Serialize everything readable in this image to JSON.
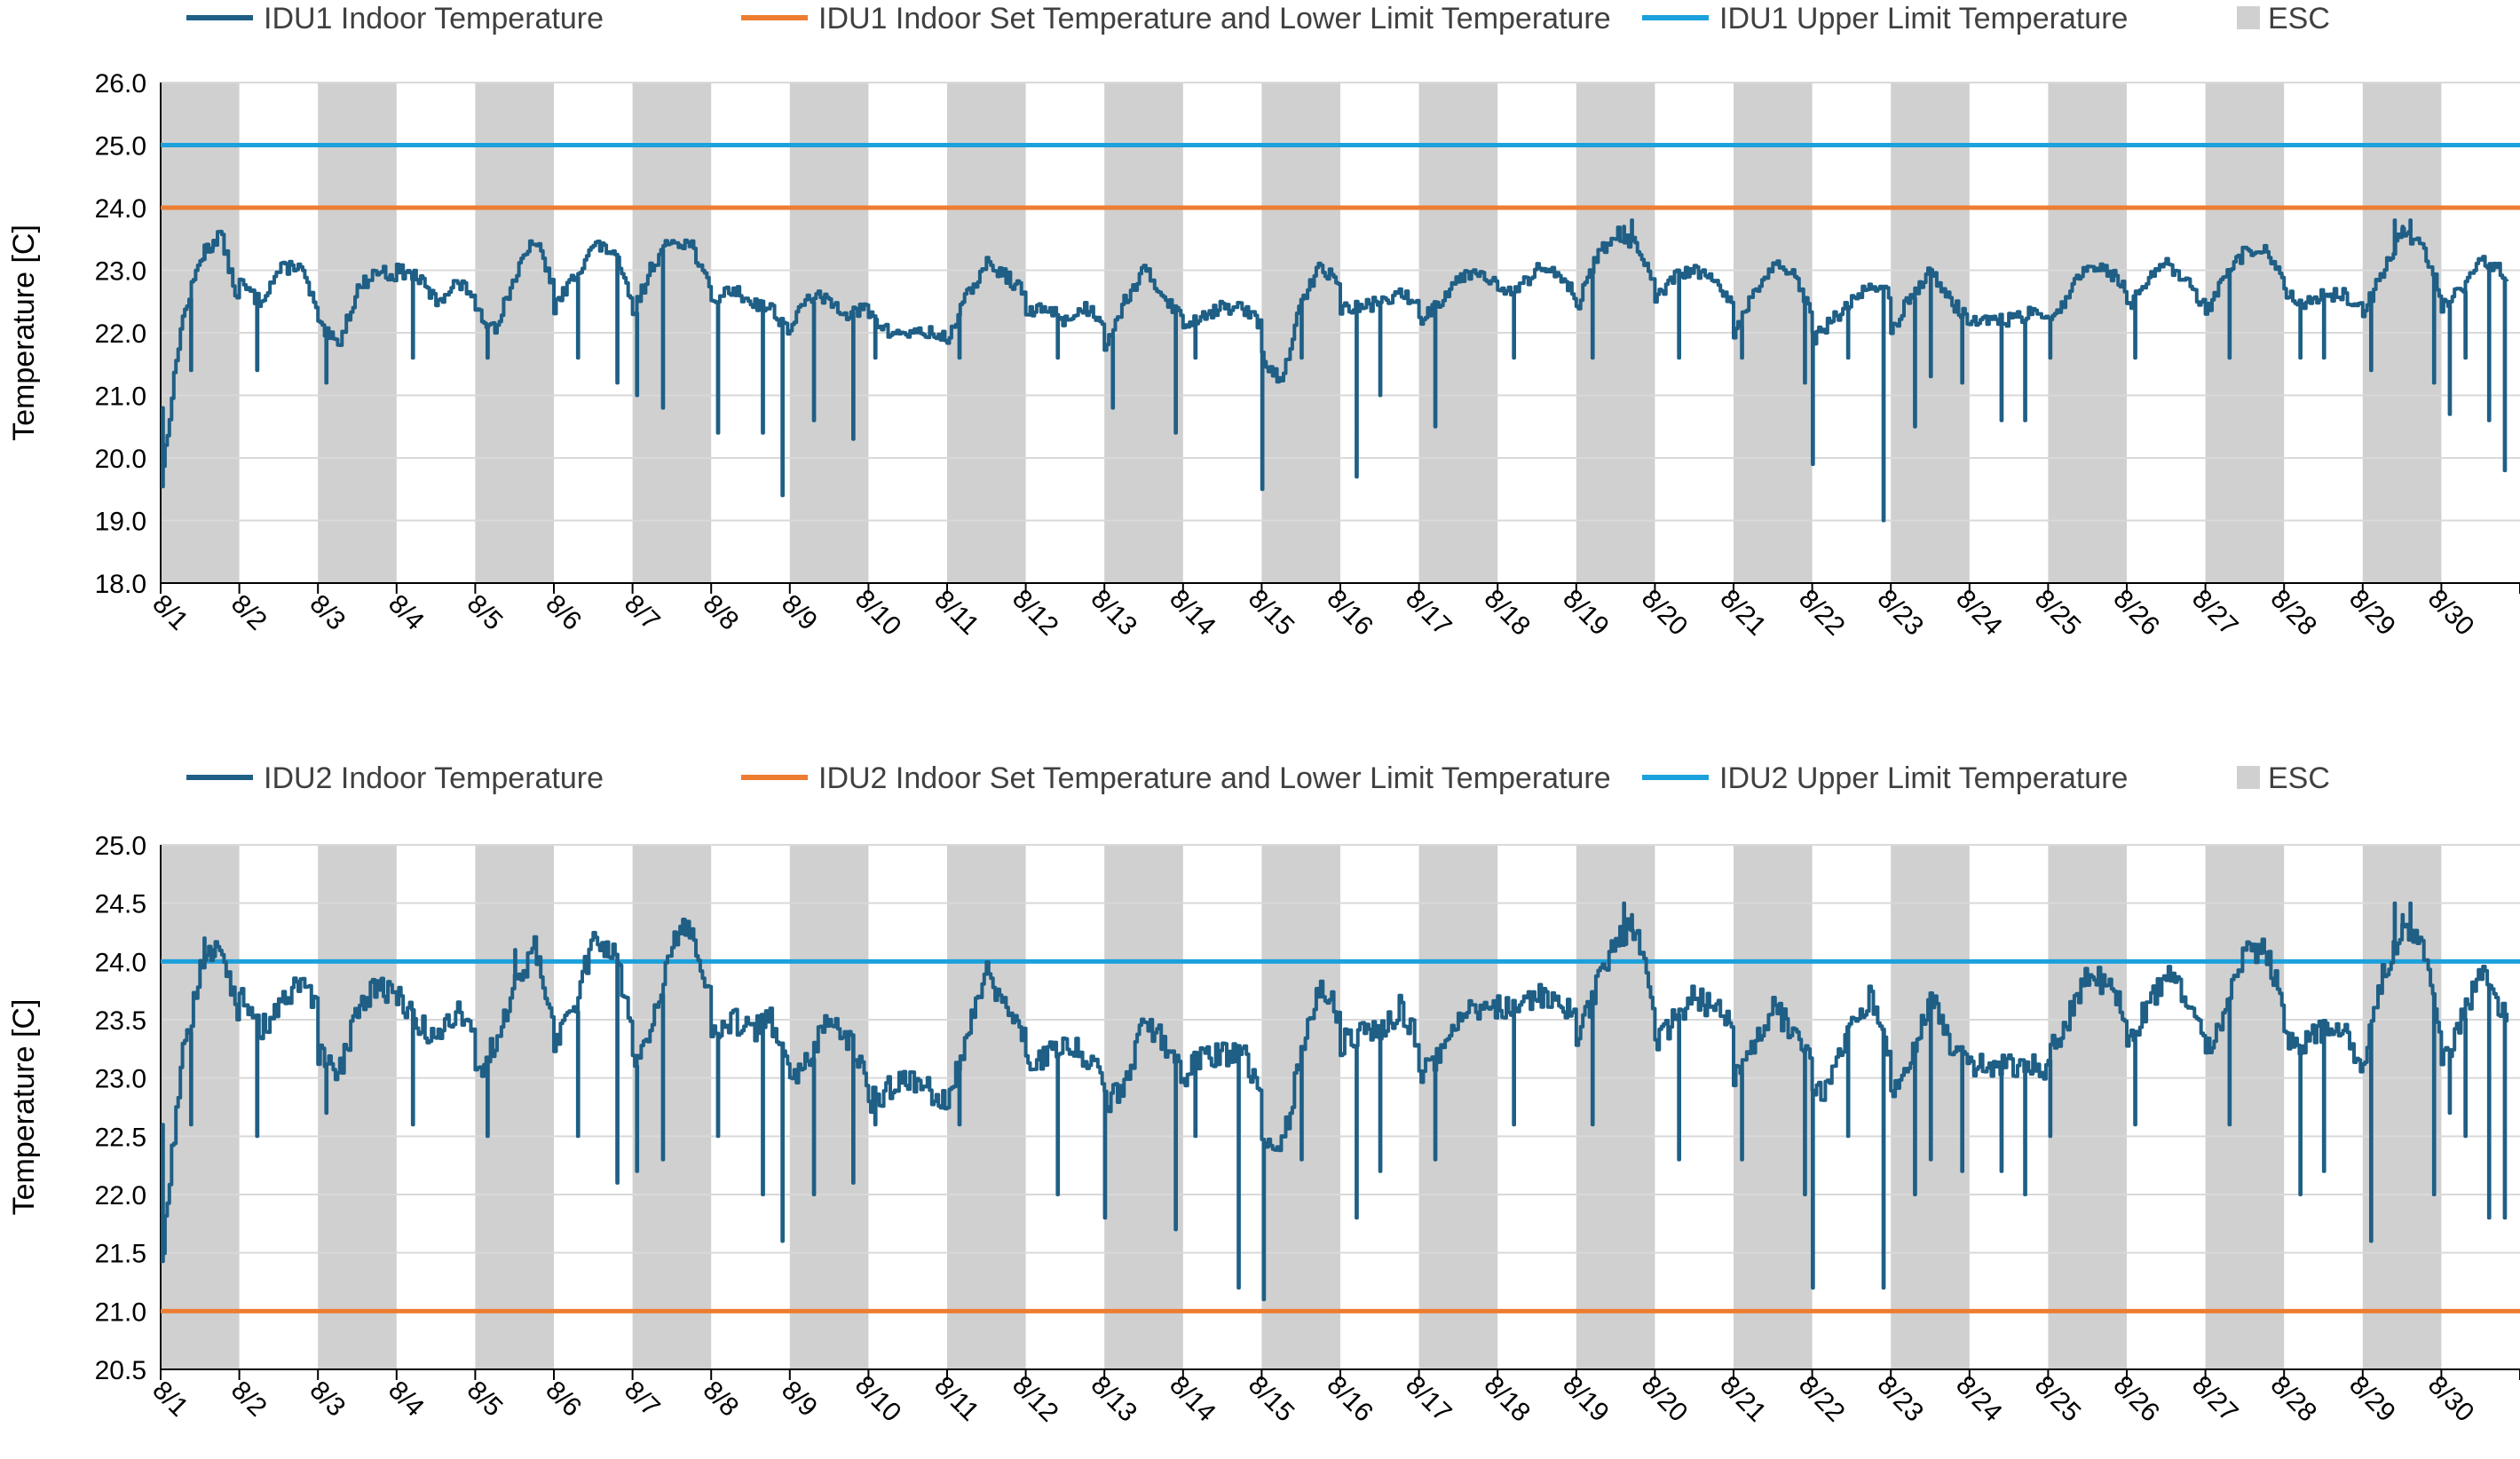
{
  "chart_data": [
    {
      "type": "line",
      "ylabel": "Temperature [C]",
      "ylim": [
        18.0,
        26.0
      ],
      "ytick_labels": [
        "18.0",
        "19.0",
        "20.0",
        "21.0",
        "22.0",
        "23.0",
        "24.0",
        "25.0",
        "26.0"
      ],
      "xtick_labels": [
        "8/1",
        "8/2",
        "8/3",
        "8/4",
        "8/5",
        "8/6",
        "8/7",
        "8/8",
        "8/9",
        "8/10",
        "8/11",
        "8/12",
        "8/13",
        "8/14",
        "8/15",
        "8/16",
        "8/17",
        "8/18",
        "8/19",
        "8/20",
        "8/21",
        "8/22",
        "8/23",
        "8/24",
        "8/25",
        "8/26",
        "8/27",
        "8/28",
        "8/29",
        "8/30"
      ],
      "esc_days": [
        1,
        3,
        5,
        7,
        9,
        11,
        13,
        15,
        17,
        19,
        21,
        23,
        25,
        27,
        29
      ],
      "legend": [
        {
          "label": "IDU1 Indoor Temperature",
          "color": "#1f5f86",
          "kind": "line"
        },
        {
          "label": "IDU1 Indoor Set Temperature and Lower Limit Temperature",
          "color": "#ed7d31",
          "kind": "line"
        },
        {
          "label": "IDU1 Upper Limit Temperature",
          "color": "#1ba1dc",
          "kind": "line"
        },
        {
          "label": "ESC",
          "color": "#d0d0d0",
          "kind": "box"
        }
      ],
      "setpoint": 24.0,
      "upper_limit": 25.0,
      "series": [
        {
          "name": "IDU1 Indoor Temperature",
          "day_profile": [
            [
              19.6,
              22.1,
              23.2,
              23.6,
              22.4
            ],
            [
              22.8,
              22.5,
              23.0,
              23.1,
              22.3
            ],
            [
              22.1,
              21.8,
              22.7,
              23.0,
              22.9
            ],
            [
              23.0,
              22.9,
              22.5,
              22.8,
              22.6
            ],
            [
              22.3,
              22.1,
              22.9,
              23.5,
              22.7
            ],
            [
              22.4,
              22.9,
              23.4,
              23.3,
              22.4
            ],
            [
              22.3,
              23.1,
              23.5,
              23.4,
              22.6
            ],
            [
              22.5,
              22.7,
              22.5,
              22.4,
              22.0
            ],
            [
              22.1,
              22.6,
              22.5,
              22.3,
              22.4
            ],
            [
              22.3,
              22.0,
              22.0,
              22.0,
              21.9
            ],
            [
              21.9,
              22.6,
              23.1,
              22.9,
              22.6
            ],
            [
              22.3,
              22.4,
              22.2,
              22.4,
              22.2
            ],
            [
              21.8,
              22.5,
              23.0,
              22.6,
              22.2
            ],
            [
              22.1,
              22.3,
              22.4,
              22.4,
              22.1
            ],
            [
              21.6,
              21.2,
              22.5,
              23.1,
              22.7
            ],
            [
              22.4,
              22.4,
              22.5,
              22.6,
              22.5
            ],
            [
              22.2,
              22.5,
              22.9,
              23.0,
              22.8
            ],
            [
              22.6,
              22.7,
              23.0,
              23.0,
              22.6
            ],
            [
              22.4,
              23.2,
              23.6,
              23.4,
              22.7
            ],
            [
              22.5,
              22.9,
              23.0,
              22.8,
              22.4
            ],
            [
              22.0,
              22.6,
              23.1,
              22.9,
              22.3
            ],
            [
              21.9,
              22.2,
              22.5,
              22.8,
              22.6
            ],
            [
              22.0,
              22.6,
              23.0,
              22.5,
              22.2
            ],
            [
              22.2,
              22.2,
              22.2,
              22.3,
              22.2
            ],
            [
              22.2,
              22.6,
              23.1,
              23.0,
              22.7
            ],
            [
              22.4,
              22.8,
              23.1,
              22.8,
              22.4
            ],
            [
              22.3,
              22.9,
              23.3,
              23.3,
              22.9
            ],
            [
              22.6,
              22.5,
              22.6,
              22.6,
              22.4
            ],
            [
              22.3,
              23.0,
              23.6,
              23.4,
              22.6
            ],
            [
              22.4,
              22.7,
              23.2,
              23.0,
              22.3
            ],
            [
              22.1,
              22.1,
              22.1,
              22.1,
              22.1
            ]
          ],
          "dips": [
            [
              0.02,
              20.8
            ],
            [
              0.38,
              21.4
            ],
            [
              1.22,
              21.4
            ],
            [
              2.1,
              21.2
            ],
            [
              3.2,
              21.6
            ],
            [
              4.15,
              21.6
            ],
            [
              5.3,
              21.6
            ],
            [
              5.8,
              21.2
            ],
            [
              6.05,
              21.0
            ],
            [
              6.38,
              20.8
            ],
            [
              7.08,
              20.4
            ],
            [
              7.65,
              20.4
            ],
            [
              7.9,
              19.4
            ],
            [
              8.3,
              20.6
            ],
            [
              8.8,
              20.3
            ],
            [
              9.08,
              21.6
            ],
            [
              10.15,
              21.6
            ],
            [
              11.4,
              21.6
            ],
            [
              12.1,
              20.8
            ],
            [
              12.9,
              20.4
            ],
            [
              13.15,
              21.6
            ],
            [
              14.0,
              19.5
            ],
            [
              14.5,
              21.6
            ],
            [
              15.2,
              19.7
            ],
            [
              15.5,
              21.0
            ],
            [
              16.2,
              20.5
            ],
            [
              17.2,
              21.6
            ],
            [
              18.2,
              21.6
            ],
            [
              19.3,
              21.6
            ],
            [
              20.1,
              21.6
            ],
            [
              20.9,
              21.2
            ],
            [
              21.0,
              19.9
            ],
            [
              21.45,
              21.6
            ],
            [
              21.9,
              19.0
            ],
            [
              22.3,
              20.5
            ],
            [
              22.5,
              21.3
            ],
            [
              22.9,
              21.2
            ],
            [
              23.4,
              20.6
            ],
            [
              23.7,
              20.6
            ],
            [
              24.02,
              21.6
            ],
            [
              25.1,
              21.6
            ],
            [
              26.3,
              21.6
            ],
            [
              27.2,
              21.6
            ],
            [
              27.5,
              21.6
            ],
            [
              28.1,
              21.4
            ],
            [
              28.9,
              21.2
            ],
            [
              29.1,
              20.7
            ],
            [
              29.3,
              21.6
            ],
            [
              29.6,
              20.6
            ],
            [
              29.8,
              19.8
            ]
          ],
          "spikes": [
            [
              0.55,
              23.4
            ],
            [
              0.65,
              23.3
            ],
            [
              6.6,
              23.4
            ],
            [
              18.6,
              23.7
            ],
            [
              18.7,
              23.8
            ],
            [
              28.4,
              23.8
            ],
            [
              28.5,
              23.7
            ],
            [
              28.6,
              23.8
            ]
          ]
        }
      ]
    },
    {
      "type": "line",
      "ylabel": "Temperature [C]",
      "ylim": [
        20.5,
        25.0
      ],
      "ytick_labels": [
        "20.5",
        "21.0",
        "21.5",
        "22.0",
        "22.5",
        "23.0",
        "23.5",
        "24.0",
        "24.5",
        "25.0"
      ],
      "xtick_labels": [
        "8/1",
        "8/2",
        "8/3",
        "8/4",
        "8/5",
        "8/6",
        "8/7",
        "8/8",
        "8/9",
        "8/10",
        "8/11",
        "8/12",
        "8/13",
        "8/14",
        "8/15",
        "8/16",
        "8/17",
        "8/18",
        "8/19",
        "8/20",
        "8/21",
        "8/22",
        "8/23",
        "8/24",
        "8/25",
        "8/26",
        "8/27",
        "8/28",
        "8/29",
        "8/30"
      ],
      "esc_days": [
        1,
        3,
        5,
        7,
        9,
        11,
        13,
        15,
        17,
        19,
        21,
        23,
        25,
        27,
        29
      ],
      "legend": [
        {
          "label": "IDU2 Indoor Temperature",
          "color": "#1f5f86",
          "kind": "line"
        },
        {
          "label": "IDU2 Indoor Set Temperature and Lower Limit Temperature",
          "color": "#ed7d31",
          "kind": "line"
        },
        {
          "label": "IDU2 Upper Limit Temperature",
          "color": "#1ba1dc",
          "kind": "line"
        },
        {
          "label": "ESC",
          "color": "#d0d0d0",
          "kind": "box"
        }
      ],
      "setpoint": 21.0,
      "upper_limit": 24.0,
      "series": [
        {
          "name": "IDU2 Indoor Temperature",
          "day_profile": [
            [
              21.4,
              23.1,
              23.9,
              24.2,
              23.5
            ],
            [
              23.7,
              23.4,
              23.6,
              23.8,
              23.6
            ],
            [
              23.2,
              23.0,
              23.6,
              23.8,
              23.7
            ],
            [
              23.7,
              23.5,
              23.3,
              23.6,
              23.4
            ],
            [
              23.0,
              23.3,
              23.8,
              24.1,
              23.5
            ],
            [
              23.3,
              23.6,
              24.2,
              24.1,
              23.4
            ],
            [
              23.1,
              23.5,
              24.2,
              24.3,
              23.6
            ],
            [
              23.4,
              23.5,
              23.4,
              23.5,
              23.0
            ],
            [
              22.9,
              23.2,
              23.5,
              23.3,
              23.0
            ],
            [
              22.8,
              22.9,
              23.0,
              22.9,
              22.8
            ],
            [
              22.8,
              23.4,
              23.9,
              23.6,
              23.3
            ],
            [
              23.1,
              23.2,
              23.3,
              23.2,
              23.0
            ],
            [
              22.8,
              22.9,
              23.5,
              23.3,
              23.0
            ],
            [
              23.0,
              23.2,
              23.2,
              23.2,
              22.9
            ],
            [
              22.5,
              22.4,
              23.2,
              23.8,
              23.5
            ],
            [
              23.3,
              23.4,
              23.4,
              23.6,
              23.3
            ],
            [
              23.0,
              23.2,
              23.5,
              23.6,
              23.6
            ],
            [
              23.6,
              23.6,
              23.7,
              23.7,
              23.5
            ],
            [
              23.3,
              23.8,
              24.2,
              24.3,
              23.6
            ],
            [
              23.3,
              23.5,
              23.7,
              23.6,
              23.4
            ],
            [
              23.0,
              23.3,
              23.6,
              23.4,
              23.2
            ],
            [
              22.8,
              23.0,
              23.5,
              23.7,
              23.1
            ],
            [
              22.9,
              23.2,
              23.7,
              23.3,
              23.1
            ],
            [
              23.1,
              23.1,
              23.1,
              23.1,
              23.1
            ],
            [
              23.2,
              23.5,
              23.9,
              23.8,
              23.5
            ],
            [
              23.3,
              23.6,
              23.9,
              23.7,
              23.4
            ],
            [
              23.2,
              23.6,
              24.1,
              24.1,
              23.6
            ],
            [
              23.3,
              23.3,
              23.4,
              23.4,
              23.1
            ],
            [
              23.1,
              23.9,
              24.3,
              24.2,
              23.3
            ],
            [
              23.1,
              23.5,
              23.9,
              23.6,
              23.2
            ],
            [
              23.1,
              23.1,
              23.1,
              23.1,
              23.1
            ]
          ],
          "dips": [
            [
              0.02,
              22.6
            ],
            [
              0.38,
              22.6
            ],
            [
              1.22,
              22.5
            ],
            [
              2.1,
              22.7
            ],
            [
              3.2,
              22.6
            ],
            [
              4.15,
              22.5
            ],
            [
              5.3,
              22.5
            ],
            [
              5.8,
              22.1
            ],
            [
              6.05,
              22.2
            ],
            [
              6.38,
              22.3
            ],
            [
              7.08,
              22.5
            ],
            [
              7.65,
              22.0
            ],
            [
              7.9,
              21.6
            ],
            [
              8.3,
              22.0
            ],
            [
              8.8,
              22.1
            ],
            [
              9.08,
              22.6
            ],
            [
              10.15,
              22.6
            ],
            [
              11.4,
              22.0
            ],
            [
              12.0,
              21.8
            ],
            [
              12.9,
              21.7
            ],
            [
              13.15,
              22.5
            ],
            [
              13.7,
              21.2
            ],
            [
              14.02,
              21.1
            ],
            [
              14.5,
              22.3
            ],
            [
              15.2,
              21.8
            ],
            [
              15.5,
              22.2
            ],
            [
              16.2,
              22.3
            ],
            [
              17.2,
              22.6
            ],
            [
              18.2,
              22.6
            ],
            [
              19.3,
              22.3
            ],
            [
              20.1,
              22.3
            ],
            [
              20.9,
              22.0
            ],
            [
              21.0,
              21.2
            ],
            [
              21.45,
              22.5
            ],
            [
              21.9,
              21.2
            ],
            [
              22.3,
              22.0
            ],
            [
              22.5,
              22.3
            ],
            [
              22.9,
              22.2
            ],
            [
              23.4,
              22.2
            ],
            [
              23.7,
              22.0
            ],
            [
              24.02,
              22.5
            ],
            [
              25.1,
              22.6
            ],
            [
              26.3,
              22.6
            ],
            [
              27.2,
              22.0
            ],
            [
              27.5,
              22.2
            ],
            [
              28.1,
              21.6
            ],
            [
              28.9,
              22.0
            ],
            [
              29.1,
              22.7
            ],
            [
              29.3,
              22.5
            ],
            [
              29.6,
              21.8
            ],
            [
              29.8,
              21.8
            ]
          ],
          "spikes": [
            [
              0.55,
              24.2
            ],
            [
              0.65,
              24.1
            ],
            [
              4.5,
              24.1
            ],
            [
              6.6,
              24.3
            ],
            [
              18.6,
              24.5
            ],
            [
              18.7,
              24.4
            ],
            [
              28.4,
              24.5
            ],
            [
              28.5,
              24.4
            ],
            [
              28.6,
              24.5
            ]
          ]
        }
      ]
    }
  ]
}
